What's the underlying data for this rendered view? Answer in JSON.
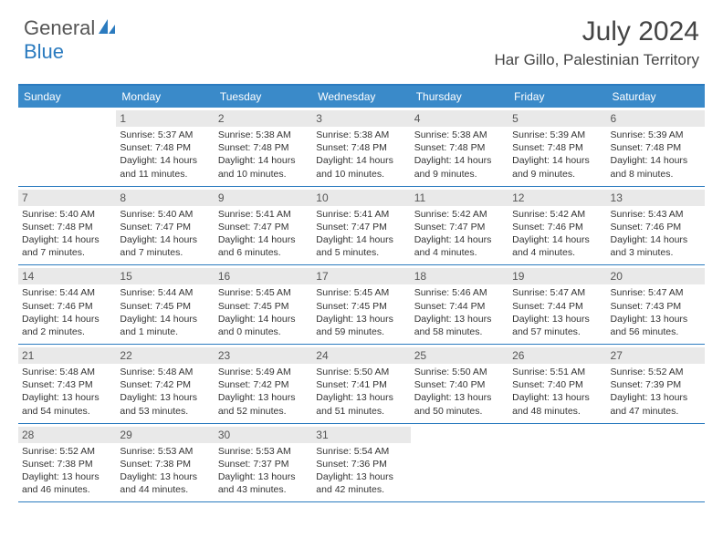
{
  "logo": {
    "part1": "General",
    "part2": "Blue"
  },
  "title": "July 2024",
  "location": "Har Gillo, Palestinian Territory",
  "colors": {
    "brand_blue": "#2b7bbf",
    "header_bg": "#3a8ac9",
    "daynum_bg": "#e9e9e9",
    "text": "#333333",
    "title_text": "#444444"
  },
  "day_headers": [
    "Sunday",
    "Monday",
    "Tuesday",
    "Wednesday",
    "Thursday",
    "Friday",
    "Saturday"
  ],
  "weeks": [
    [
      {
        "n": "",
        "t": ""
      },
      {
        "n": "1",
        "t": "Sunrise: 5:37 AM\nSunset: 7:48 PM\nDaylight: 14 hours and 11 minutes."
      },
      {
        "n": "2",
        "t": "Sunrise: 5:38 AM\nSunset: 7:48 PM\nDaylight: 14 hours and 10 minutes."
      },
      {
        "n": "3",
        "t": "Sunrise: 5:38 AM\nSunset: 7:48 PM\nDaylight: 14 hours and 10 minutes."
      },
      {
        "n": "4",
        "t": "Sunrise: 5:38 AM\nSunset: 7:48 PM\nDaylight: 14 hours and 9 minutes."
      },
      {
        "n": "5",
        "t": "Sunrise: 5:39 AM\nSunset: 7:48 PM\nDaylight: 14 hours and 9 minutes."
      },
      {
        "n": "6",
        "t": "Sunrise: 5:39 AM\nSunset: 7:48 PM\nDaylight: 14 hours and 8 minutes."
      }
    ],
    [
      {
        "n": "7",
        "t": "Sunrise: 5:40 AM\nSunset: 7:48 PM\nDaylight: 14 hours and 7 minutes."
      },
      {
        "n": "8",
        "t": "Sunrise: 5:40 AM\nSunset: 7:47 PM\nDaylight: 14 hours and 7 minutes."
      },
      {
        "n": "9",
        "t": "Sunrise: 5:41 AM\nSunset: 7:47 PM\nDaylight: 14 hours and 6 minutes."
      },
      {
        "n": "10",
        "t": "Sunrise: 5:41 AM\nSunset: 7:47 PM\nDaylight: 14 hours and 5 minutes."
      },
      {
        "n": "11",
        "t": "Sunrise: 5:42 AM\nSunset: 7:47 PM\nDaylight: 14 hours and 4 minutes."
      },
      {
        "n": "12",
        "t": "Sunrise: 5:42 AM\nSunset: 7:46 PM\nDaylight: 14 hours and 4 minutes."
      },
      {
        "n": "13",
        "t": "Sunrise: 5:43 AM\nSunset: 7:46 PM\nDaylight: 14 hours and 3 minutes."
      }
    ],
    [
      {
        "n": "14",
        "t": "Sunrise: 5:44 AM\nSunset: 7:46 PM\nDaylight: 14 hours and 2 minutes."
      },
      {
        "n": "15",
        "t": "Sunrise: 5:44 AM\nSunset: 7:45 PM\nDaylight: 14 hours and 1 minute."
      },
      {
        "n": "16",
        "t": "Sunrise: 5:45 AM\nSunset: 7:45 PM\nDaylight: 14 hours and 0 minutes."
      },
      {
        "n": "17",
        "t": "Sunrise: 5:45 AM\nSunset: 7:45 PM\nDaylight: 13 hours and 59 minutes."
      },
      {
        "n": "18",
        "t": "Sunrise: 5:46 AM\nSunset: 7:44 PM\nDaylight: 13 hours and 58 minutes."
      },
      {
        "n": "19",
        "t": "Sunrise: 5:47 AM\nSunset: 7:44 PM\nDaylight: 13 hours and 57 minutes."
      },
      {
        "n": "20",
        "t": "Sunrise: 5:47 AM\nSunset: 7:43 PM\nDaylight: 13 hours and 56 minutes."
      }
    ],
    [
      {
        "n": "21",
        "t": "Sunrise: 5:48 AM\nSunset: 7:43 PM\nDaylight: 13 hours and 54 minutes."
      },
      {
        "n": "22",
        "t": "Sunrise: 5:48 AM\nSunset: 7:42 PM\nDaylight: 13 hours and 53 minutes."
      },
      {
        "n": "23",
        "t": "Sunrise: 5:49 AM\nSunset: 7:42 PM\nDaylight: 13 hours and 52 minutes."
      },
      {
        "n": "24",
        "t": "Sunrise: 5:50 AM\nSunset: 7:41 PM\nDaylight: 13 hours and 51 minutes."
      },
      {
        "n": "25",
        "t": "Sunrise: 5:50 AM\nSunset: 7:40 PM\nDaylight: 13 hours and 50 minutes."
      },
      {
        "n": "26",
        "t": "Sunrise: 5:51 AM\nSunset: 7:40 PM\nDaylight: 13 hours and 48 minutes."
      },
      {
        "n": "27",
        "t": "Sunrise: 5:52 AM\nSunset: 7:39 PM\nDaylight: 13 hours and 47 minutes."
      }
    ],
    [
      {
        "n": "28",
        "t": "Sunrise: 5:52 AM\nSunset: 7:38 PM\nDaylight: 13 hours and 46 minutes."
      },
      {
        "n": "29",
        "t": "Sunrise: 5:53 AM\nSunset: 7:38 PM\nDaylight: 13 hours and 44 minutes."
      },
      {
        "n": "30",
        "t": "Sunrise: 5:53 AM\nSunset: 7:37 PM\nDaylight: 13 hours and 43 minutes."
      },
      {
        "n": "31",
        "t": "Sunrise: 5:54 AM\nSunset: 7:36 PM\nDaylight: 13 hours and 42 minutes."
      },
      {
        "n": "",
        "t": ""
      },
      {
        "n": "",
        "t": ""
      },
      {
        "n": "",
        "t": ""
      }
    ]
  ]
}
